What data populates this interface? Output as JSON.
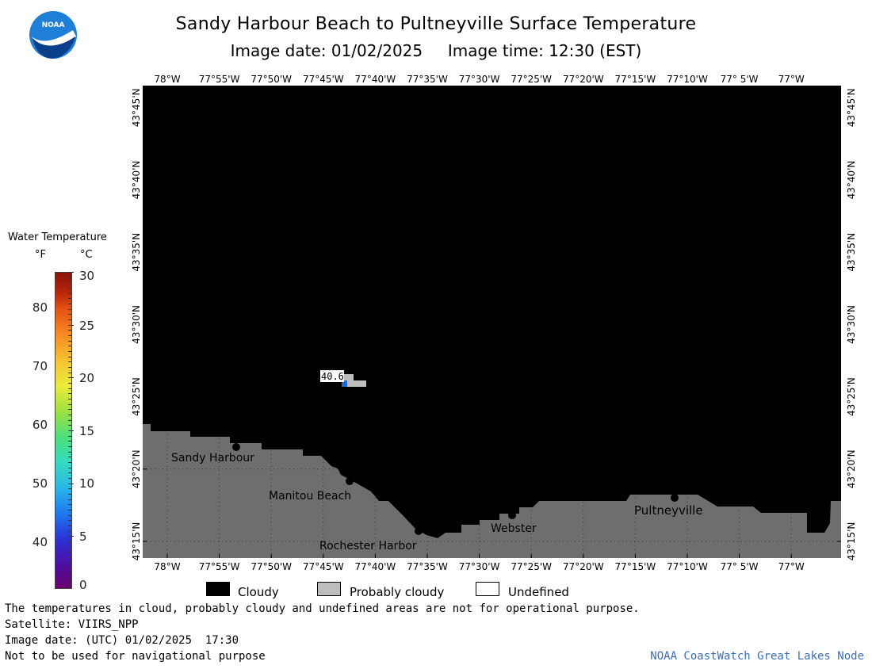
{
  "title": "Sandy Harbour Beach to Pultneyville Surface Temperature",
  "subtitle": "Image date: 01/02/2025     Image time: 12:30 (EST)",
  "logo": {
    "text": "NOAA",
    "primary_color": "#1f7fd6",
    "secondary_color": "#0a3f8a"
  },
  "map": {
    "longitude_labels": [
      "78°W",
      "77°55'W",
      "77°50'W",
      "77°45'W",
      "77°40'W",
      "77°35'W",
      "77°30'W",
      "77°25'W",
      "77°20'W",
      "77°15'W",
      "77°10'W",
      "77° 5'W",
      "77°W"
    ],
    "latitude_labels": [
      "43°45'N",
      "43°40'N",
      "43°35'N",
      "43°30'N",
      "43°25'N",
      "43°20'N",
      "43°15'N"
    ],
    "water_color": "#000000",
    "land_color": "#6e6e6e",
    "places": [
      "Sandy Harbour",
      "Manitou Beach",
      "Rochester Harbor",
      "Webster",
      "Pultneyville"
    ],
    "temperature_readout": "40.6"
  },
  "legend": {
    "title": "Water Temperature",
    "unit_f": "°F",
    "unit_c": "°C",
    "fahrenheit_ticks": [
      "80",
      "70",
      "60",
      "50",
      "40"
    ],
    "celsius_ticks": [
      "30",
      "25",
      "20",
      "15",
      "10",
      "5",
      "0"
    ],
    "range_c": [
      0,
      30
    ],
    "categories": [
      {
        "label": "Cloudy",
        "color": "#000000"
      },
      {
        "label": "Probably cloudy",
        "color": "#bdbdbd"
      },
      {
        "label": "Undefined",
        "color": "#ffffff"
      }
    ]
  },
  "footer": {
    "disclaimer": "The temperatures in cloud, probably cloudy and undefined areas are not for operational purpose.",
    "satellite": "Satellite: VIIRS_NPP",
    "utc_date": "Image date: (UTC) 01/02/2025  17:30",
    "nav_warning": "Not to be used for navigational purpose",
    "credit": "NOAA CoastWatch Great Lakes Node"
  }
}
